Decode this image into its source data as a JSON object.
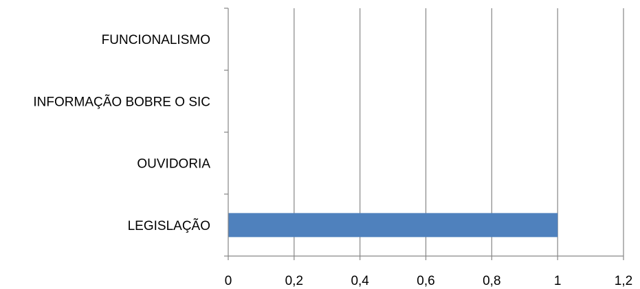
{
  "chart_data": {
    "type": "bar",
    "orientation": "horizontal",
    "categories": [
      "LEGISLAÇÃO",
      "OUVIDORIA",
      "INFORMAÇÃO BOBRE O SIC",
      "FUNCIONALISMO"
    ],
    "values": [
      1,
      0,
      0,
      0
    ],
    "title": "",
    "xlabel": "",
    "ylabel": "",
    "xlim": [
      0,
      1.2
    ],
    "x_ticks": [
      "0",
      "0,2",
      "0,4",
      "0,6",
      "0,8",
      "1",
      "1,2"
    ],
    "grid": "vertical",
    "legend": "none",
    "colors": {
      "bar": "#4f81bd",
      "grid": "#868686",
      "axis": "#868686"
    }
  }
}
